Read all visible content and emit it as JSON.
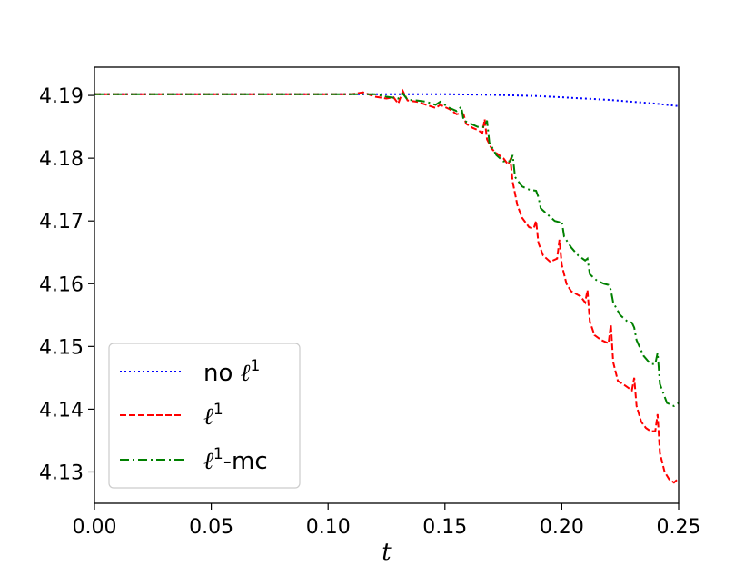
{
  "chart_data": {
    "type": "line",
    "title": "",
    "xlabel": "t",
    "ylabel": "",
    "xlim": [
      0.0,
      0.25
    ],
    "ylim": [
      4.125,
      4.1945
    ],
    "grid": false,
    "legend_position": "lower-left",
    "x_ticks": [
      "0.00",
      "0.05",
      "0.10",
      "0.15",
      "0.20",
      "0.25"
    ],
    "y_ticks": [
      "4.13",
      "4.14",
      "4.15",
      "4.16",
      "4.17",
      "4.18",
      "4.19"
    ],
    "series": [
      {
        "name": "no ℓ¹",
        "legend_label": "no ℓ",
        "legend_sup": "1",
        "color": "#0000ff",
        "style": "dotted",
        "points": [
          [
            0.0,
            4.1902
          ],
          [
            0.1,
            4.1902
          ],
          [
            0.13,
            4.1902
          ],
          [
            0.15,
            4.1902
          ],
          [
            0.17,
            4.1901
          ],
          [
            0.19,
            4.1899
          ],
          [
            0.2,
            4.1897
          ],
          [
            0.22,
            4.1893
          ],
          [
            0.24,
            4.1887
          ],
          [
            0.25,
            4.1883
          ]
        ]
      },
      {
        "name": "ℓ¹",
        "legend_label": "ℓ",
        "legend_sup": "1",
        "color": "#ff0000",
        "style": "dashed",
        "points": [
          [
            0.0,
            4.1902
          ],
          [
            0.11,
            4.1902
          ],
          [
            0.115,
            4.1905
          ],
          [
            0.12,
            4.1898
          ],
          [
            0.125,
            4.1895
          ],
          [
            0.128,
            4.1897
          ],
          [
            0.13,
            4.1887
          ],
          [
            0.132,
            4.1907
          ],
          [
            0.134,
            4.1892
          ],
          [
            0.138,
            4.189
          ],
          [
            0.142,
            4.1885
          ],
          [
            0.146,
            4.188
          ],
          [
            0.148,
            4.1885
          ],
          [
            0.152,
            4.1878
          ],
          [
            0.155,
            4.187
          ],
          [
            0.157,
            4.1872
          ],
          [
            0.158,
            4.187
          ],
          [
            0.159,
            4.1855
          ],
          [
            0.162,
            4.1848
          ],
          [
            0.164,
            4.1845
          ],
          [
            0.166,
            4.184
          ],
          [
            0.167,
            4.1862
          ],
          [
            0.168,
            4.183
          ],
          [
            0.17,
            4.1815
          ],
          [
            0.172,
            4.1808
          ],
          [
            0.175,
            4.18
          ],
          [
            0.177,
            4.179
          ],
          [
            0.178,
            4.1798
          ],
          [
            0.179,
            4.1762
          ],
          [
            0.181,
            4.1725
          ],
          [
            0.183,
            4.1705
          ],
          [
            0.186,
            4.169
          ],
          [
            0.188,
            4.1688
          ],
          [
            0.189,
            4.17
          ],
          [
            0.19,
            4.1665
          ],
          [
            0.192,
            4.1645
          ],
          [
            0.195,
            4.1635
          ],
          [
            0.198,
            4.164
          ],
          [
            0.199,
            4.167
          ],
          [
            0.2,
            4.163
          ],
          [
            0.202,
            4.16
          ],
          [
            0.204,
            4.1588
          ],
          [
            0.208,
            4.158
          ],
          [
            0.21,
            4.157
          ],
          [
            0.211,
            4.159
          ],
          [
            0.212,
            4.154
          ],
          [
            0.214,
            4.1518
          ],
          [
            0.217,
            4.151
          ],
          [
            0.22,
            4.1505
          ],
          [
            0.221,
            4.1535
          ],
          [
            0.222,
            4.1475
          ],
          [
            0.224,
            4.1445
          ],
          [
            0.227,
            4.1438
          ],
          [
            0.23,
            4.143
          ],
          [
            0.231,
            4.145
          ],
          [
            0.232,
            4.1405
          ],
          [
            0.234,
            4.138
          ],
          [
            0.236,
            4.137
          ],
          [
            0.238,
            4.1365
          ],
          [
            0.24,
            4.1365
          ],
          [
            0.241,
            4.1392
          ],
          [
            0.242,
            4.133
          ],
          [
            0.244,
            4.13
          ],
          [
            0.246,
            4.1288
          ],
          [
            0.248,
            4.1283
          ],
          [
            0.25,
            4.129
          ]
        ]
      },
      {
        "name": "ℓ¹-mc",
        "legend_label": "ℓ",
        "legend_sup": "1",
        "legend_suffix": "-mc",
        "color": "#008000",
        "style": "dashdot",
        "points": [
          [
            0.0,
            4.1902
          ],
          [
            0.12,
            4.1902
          ],
          [
            0.125,
            4.1898
          ],
          [
            0.13,
            4.1895
          ],
          [
            0.132,
            4.1903
          ],
          [
            0.134,
            4.1893
          ],
          [
            0.138,
            4.1892
          ],
          [
            0.142,
            4.189
          ],
          [
            0.146,
            4.1885
          ],
          [
            0.148,
            4.189
          ],
          [
            0.152,
            4.188
          ],
          [
            0.155,
            4.1875
          ],
          [
            0.157,
            4.1882
          ],
          [
            0.158,
            4.186
          ],
          [
            0.161,
            4.1855
          ],
          [
            0.164,
            4.185
          ],
          [
            0.167,
            4.185
          ],
          [
            0.168,
            4.186
          ],
          [
            0.169,
            4.1825
          ],
          [
            0.172,
            4.1805
          ],
          [
            0.175,
            4.1795
          ],
          [
            0.178,
            4.1795
          ],
          [
            0.179,
            4.1805
          ],
          [
            0.18,
            4.177
          ],
          [
            0.183,
            4.1755
          ],
          [
            0.186,
            4.175
          ],
          [
            0.189,
            4.1748
          ],
          [
            0.19,
            4.1738
          ],
          [
            0.191,
            4.172
          ],
          [
            0.194,
            4.171
          ],
          [
            0.197,
            4.17
          ],
          [
            0.199,
            4.1698
          ],
          [
            0.2,
            4.17
          ],
          [
            0.201,
            4.1675
          ],
          [
            0.204,
            4.1658
          ],
          [
            0.207,
            4.1645
          ],
          [
            0.21,
            4.1637
          ],
          [
            0.211,
            4.164
          ],
          [
            0.212,
            4.1615
          ],
          [
            0.215,
            4.1605
          ],
          [
            0.218,
            4.16
          ],
          [
            0.22,
            4.1598
          ],
          [
            0.221,
            4.159
          ],
          [
            0.222,
            4.157
          ],
          [
            0.225,
            4.155
          ],
          [
            0.228,
            4.154
          ],
          [
            0.23,
            4.1538
          ],
          [
            0.231,
            4.153
          ],
          [
            0.232,
            4.151
          ],
          [
            0.235,
            4.1485
          ],
          [
            0.238,
            4.1472
          ],
          [
            0.24,
            4.1472
          ],
          [
            0.241,
            4.149
          ],
          [
            0.242,
            4.144
          ],
          [
            0.245,
            4.141
          ],
          [
            0.248,
            4.1405
          ],
          [
            0.25,
            4.141
          ]
        ]
      }
    ]
  }
}
